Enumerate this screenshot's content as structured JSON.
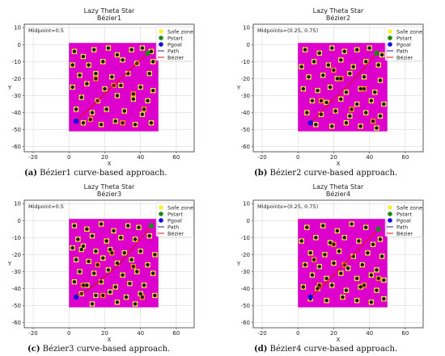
{
  "figure": {
    "captions": [
      {
        "label": "(a)",
        "text": "Bézier1 curve-based approach."
      },
      {
        "label": "(b)",
        "text": "Bézier2 curve-based approach."
      },
      {
        "label": "(c)",
        "text": "Bézier3 curve-based approach."
      },
      {
        "label": "(d)",
        "text": "Bézier4 curve-based approach."
      }
    ]
  },
  "colors": {
    "field": "#dd00cc",
    "obstacle": "#1a1a1a",
    "safe_zone": "#ffee33",
    "safe_zone_orange": "#ff8c1a",
    "pstart": "#1a8a1a",
    "pgoal": "#1111dd",
    "path": "#2222aa",
    "bezier": "#ee1111"
  },
  "chart_data": [
    {
      "type": "scatter",
      "title": "Lazy Theta Star",
      "subtitle": "Bézier1",
      "annotation": "Midpoint=0.5",
      "xlabel": "X",
      "ylabel": "Y",
      "xlim": [
        -25,
        70
      ],
      "ylim": [
        -63,
        12
      ],
      "xticks": [
        -20,
        0,
        20,
        40,
        60
      ],
      "yticks": [
        10,
        0,
        -10,
        -20,
        -30,
        -40,
        -50,
        -60
      ],
      "field": {
        "x": [
          0,
          50
        ],
        "y": [
          -51,
          1
        ]
      },
      "legend": [
        "Safe zone",
        "Pstart",
        "Pgoal",
        "Path",
        "Bézier"
      ],
      "pstart": [
        44,
        -5
      ],
      "pgoal": [
        4,
        -45
      ],
      "path": [
        [
          4,
          -45
        ],
        [
          44,
          -5
        ]
      ],
      "bezier": [
        [
          4,
          -45
        ],
        [
          44,
          -5
        ]
      ],
      "obstacles": [
        [
          3,
          -4
        ],
        [
          8,
          -7
        ],
        [
          14,
          -3
        ],
        [
          22,
          -2
        ],
        [
          27,
          -6
        ],
        [
          35,
          -3
        ],
        [
          41,
          -2
        ],
        [
          46,
          -4
        ],
        [
          2,
          -12
        ],
        [
          11,
          -12
        ],
        [
          19,
          -10
        ],
        [
          30,
          -9
        ],
        [
          38,
          -11
        ],
        [
          47,
          -10
        ],
        [
          6,
          -18
        ],
        [
          15,
          -17
        ],
        [
          24,
          -19
        ],
        [
          33,
          -17
        ],
        [
          45,
          -17
        ],
        [
          2,
          -25
        ],
        [
          10,
          -23
        ],
        [
          20,
          -26
        ],
        [
          29,
          -24
        ],
        [
          40,
          -25
        ],
        [
          47,
          -27
        ],
        [
          7,
          -31
        ],
        [
          16,
          -33
        ],
        [
          27,
          -30
        ],
        [
          36,
          -32
        ],
        [
          44,
          -33
        ],
        [
          4,
          -38
        ],
        [
          13,
          -40
        ],
        [
          21,
          -38
        ],
        [
          31,
          -39
        ],
        [
          41,
          -41
        ],
        [
          8,
          -46
        ],
        [
          18,
          -47
        ],
        [
          26,
          -45
        ],
        [
          37,
          -47
        ],
        [
          46,
          -46
        ]
      ],
      "orange": [
        [
          25,
          -24
        ],
        [
          36,
          -29
        ],
        [
          12,
          -44
        ],
        [
          30,
          -46
        ],
        [
          15,
          -20
        ],
        [
          42,
          -38
        ]
      ]
    },
    {
      "type": "scatter",
      "title": "Lazy Theta Star",
      "subtitle": "Bézier2",
      "annotation": "Midpoints=(0.25, 0.75)",
      "xlabel": "X",
      "ylabel": "Y",
      "xlim": [
        -25,
        70
      ],
      "ylim": [
        -63,
        12
      ],
      "xticks": [
        -20,
        0,
        20,
        40,
        60
      ],
      "yticks": [
        10,
        0,
        -10,
        -20,
        -30,
        -40,
        -50,
        -60
      ],
      "field": {
        "x": [
          0,
          50
        ],
        "y": [
          -51,
          1
        ]
      },
      "legend": [
        "Safe zone",
        "Pstart",
        "Pgoal",
        "Path",
        "Bézier"
      ],
      "pstart": [
        44,
        -5
      ],
      "pgoal": [
        7,
        -46
      ],
      "path": [
        [
          7,
          -46
        ],
        [
          20,
          -32
        ],
        [
          32,
          -20
        ],
        [
          44,
          -5
        ]
      ],
      "bezier": [
        [
          7,
          -46
        ],
        [
          19,
          -33
        ],
        [
          31,
          -21
        ],
        [
          44,
          -5
        ]
      ],
      "obstacles": [
        [
          4,
          -3
        ],
        [
          12,
          -5
        ],
        [
          19,
          -2
        ],
        [
          26,
          -4
        ],
        [
          33,
          -3
        ],
        [
          40,
          -2
        ],
        [
          47,
          -6
        ],
        [
          2,
          -13
        ],
        [
          9,
          -10
        ],
        [
          17,
          -12
        ],
        [
          24,
          -9
        ],
        [
          31,
          -13
        ],
        [
          38,
          -10
        ],
        [
          45,
          -12
        ],
        [
          6,
          -19
        ],
        [
          14,
          -18
        ],
        [
          22,
          -20
        ],
        [
          29,
          -17
        ],
        [
          37,
          -19
        ],
        [
          46,
          -21
        ],
        [
          3,
          -26
        ],
        [
          11,
          -27
        ],
        [
          18,
          -25
        ],
        [
          27,
          -28
        ],
        [
          35,
          -26
        ],
        [
          43,
          -28
        ],
        [
          8,
          -33
        ],
        [
          16,
          -34
        ],
        [
          24,
          -32
        ],
        [
          33,
          -35
        ],
        [
          41,
          -33
        ],
        [
          48,
          -35
        ],
        [
          5,
          -40
        ],
        [
          13,
          -41
        ],
        [
          21,
          -39
        ],
        [
          29,
          -42
        ],
        [
          38,
          -40
        ],
        [
          46,
          -42
        ],
        [
          10,
          -47
        ],
        [
          19,
          -48
        ],
        [
          27,
          -46
        ],
        [
          35,
          -48
        ],
        [
          44,
          -49
        ]
      ],
      "orange": [
        [
          24,
          -20
        ],
        [
          13,
          -33
        ],
        [
          37,
          -26
        ],
        [
          30,
          -38
        ],
        [
          42,
          -45
        ],
        [
          20,
          -15
        ]
      ]
    },
    {
      "type": "scatter",
      "title": "Lazy Theta Star",
      "subtitle": "Bézier3",
      "annotation": "Midpoint=0.5",
      "xlabel": "X",
      "ylabel": "Y",
      "xlim": [
        -25,
        70
      ],
      "ylim": [
        -63,
        12
      ],
      "xticks": [
        -20,
        0,
        20,
        40,
        60
      ],
      "yticks": [
        10,
        0,
        -10,
        -20,
        -30,
        -40,
        -50,
        -60
      ],
      "field": {
        "x": [
          0,
          50
        ],
        "y": [
          -51,
          1
        ]
      },
      "legend": [
        "Safe zone",
        "Pstart",
        "Pgoal",
        "Path",
        "Bézier"
      ],
      "pstart": [
        46,
        -3
      ],
      "pgoal": [
        4,
        -45
      ],
      "path": [
        [
          4,
          -45
        ],
        [
          14,
          -38
        ],
        [
          28,
          -26
        ],
        [
          46,
          -3
        ]
      ],
      "bezier": [
        [
          4,
          -45
        ],
        [
          13,
          -39
        ],
        [
          27,
          -27
        ],
        [
          46,
          -3
        ]
      ],
      "obstacles": [
        [
          3,
          -3
        ],
        [
          10,
          -5
        ],
        [
          18,
          -2
        ],
        [
          25,
          -6
        ],
        [
          33,
          -3
        ],
        [
          39,
          -4
        ],
        [
          5,
          -11
        ],
        [
          13,
          -9
        ],
        [
          21,
          -12
        ],
        [
          29,
          -10
        ],
        [
          37,
          -11
        ],
        [
          45,
          -9
        ],
        [
          2,
          -16
        ],
        [
          7,
          -17
        ],
        [
          8,
          -15
        ],
        [
          15,
          -18
        ],
        [
          23,
          -17
        ],
        [
          31,
          -19
        ],
        [
          40,
          -18
        ],
        [
          48,
          -20
        ],
        [
          4,
          -23
        ],
        [
          11,
          -24
        ],
        [
          19,
          -22
        ],
        [
          27,
          -25
        ],
        [
          35,
          -23
        ],
        [
          44,
          -26
        ],
        [
          6,
          -30
        ],
        [
          14,
          -31
        ],
        [
          22,
          -29
        ],
        [
          30,
          -32
        ],
        [
          38,
          -30
        ],
        [
          47,
          -31
        ],
        [
          3,
          -36
        ],
        [
          10,
          -38
        ],
        [
          18,
          -36
        ],
        [
          26,
          -39
        ],
        [
          34,
          -37
        ],
        [
          42,
          -38
        ],
        [
          7,
          -43
        ],
        [
          15,
          -44
        ],
        [
          23,
          -42
        ],
        [
          32,
          -45
        ],
        [
          40,
          -43
        ],
        [
          48,
          -44
        ],
        [
          13,
          -49
        ],
        [
          27,
          -48
        ],
        [
          37,
          -49
        ]
      ],
      "orange": [
        [
          24,
          -19
        ],
        [
          36,
          -27
        ],
        [
          8,
          -38
        ],
        [
          19,
          -44
        ],
        [
          41,
          -45
        ],
        [
          16,
          -26
        ]
      ]
    },
    {
      "type": "scatter",
      "title": "Lazy Theta Star",
      "subtitle": "Bézier4",
      "annotation": "Midpoints=(0.25, 0.75)",
      "xlabel": "X",
      "ylabel": "Y",
      "xlim": [
        -25,
        70
      ],
      "ylim": [
        -63,
        12
      ],
      "xticks": [
        -20,
        0,
        20,
        40,
        60
      ],
      "yticks": [
        10,
        0,
        -10,
        -20,
        -30,
        -40,
        -50,
        -60
      ],
      "field": {
        "x": [
          0,
          50
        ],
        "y": [
          -51,
          1
        ]
      },
      "legend": [
        "Safe zone",
        "Pstart",
        "Pgoal",
        "Path",
        "Bézier"
      ],
      "pstart": [
        45,
        -5
      ],
      "pgoal": [
        7,
        -45
      ],
      "path": [
        [
          7,
          -45
        ],
        [
          20,
          -32
        ],
        [
          33,
          -18
        ],
        [
          45,
          -5
        ]
      ],
      "bezier": [
        [
          7,
          -45
        ],
        [
          19,
          -33
        ],
        [
          32,
          -19
        ],
        [
          45,
          -5
        ]
      ],
      "obstacles": [
        [
          5,
          -4
        ],
        [
          14,
          -3
        ],
        [
          22,
          -6
        ],
        [
          30,
          -2
        ],
        [
          38,
          -4
        ],
        [
          46,
          -11
        ],
        [
          2,
          -12
        ],
        [
          10,
          -10
        ],
        [
          18,
          -13
        ],
        [
          26,
          -10
        ],
        [
          34,
          -12
        ],
        [
          42,
          -14
        ],
        [
          7,
          -19
        ],
        [
          15,
          -20
        ],
        [
          23,
          -18
        ],
        [
          31,
          -21
        ],
        [
          39,
          -19
        ],
        [
          47,
          -21
        ],
        [
          4,
          -26
        ],
        [
          12,
          -27
        ],
        [
          20,
          -25
        ],
        [
          28,
          -28
        ],
        [
          36,
          -26
        ],
        [
          44,
          -29
        ],
        [
          8,
          -32
        ],
        [
          16,
          -34
        ],
        [
          24,
          -31
        ],
        [
          33,
          -34
        ],
        [
          41,
          -32
        ],
        [
          48,
          -35
        ],
        [
          3,
          -39
        ],
        [
          11,
          -40
        ],
        [
          19,
          -38
        ],
        [
          27,
          -41
        ],
        [
          35,
          -39
        ],
        [
          44,
          -41
        ],
        [
          7,
          -46
        ],
        [
          16,
          -47
        ],
        [
          25,
          -45
        ],
        [
          33,
          -47
        ],
        [
          41,
          -48
        ],
        [
          48,
          -46
        ]
      ],
      "orange": [
        [
          12,
          -38
        ],
        [
          26,
          -26
        ],
        [
          37,
          -38
        ],
        [
          20,
          -14
        ],
        [
          45,
          -34
        ],
        [
          9,
          -23
        ]
      ]
    }
  ]
}
